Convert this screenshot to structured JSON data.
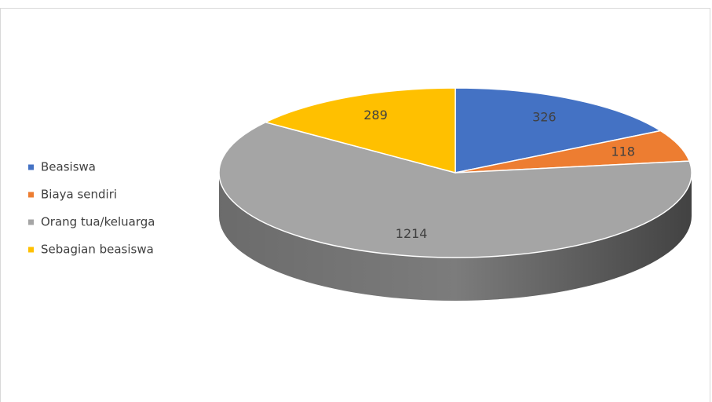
{
  "chart_data": {
    "type": "pie",
    "categories": [
      "Beasiswa",
      "Biaya sendiri",
      "Orang tua/keluarga",
      "Sebagian beasiswa"
    ],
    "values": [
      326,
      118,
      1214,
      289
    ],
    "colors": [
      "#4472c4",
      "#ed7d31",
      "#a5a5a5",
      "#ffc000"
    ],
    "legend": "left"
  }
}
